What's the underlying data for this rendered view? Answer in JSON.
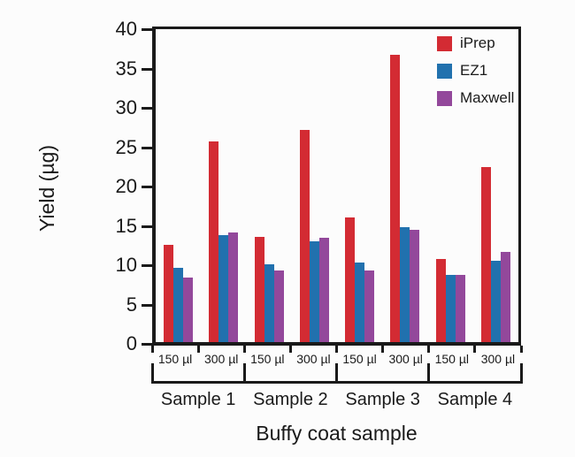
{
  "figure": {
    "background": "#fcfcfc",
    "axis_color": "#1a1a1a",
    "text_color": "#1a1a1a"
  },
  "chart_data": {
    "type": "bar",
    "title": "",
    "xlabel": "Buffy coat sample",
    "ylabel": "Yield (µg)",
    "ylim": [
      0,
      40
    ],
    "yticks": [
      0,
      5,
      10,
      15,
      20,
      25,
      30,
      35,
      40
    ],
    "grid": false,
    "legend_position": "top-right-inside",
    "categories": [
      "150 µl",
      "300 µl",
      "150 µl",
      "300 µl",
      "150 µl",
      "300 µl",
      "150 µl",
      "300 µl"
    ],
    "group_labels": [
      "Sample 1",
      "Sample 2",
      "Sample 3",
      "Sample 4"
    ],
    "series": [
      {
        "name": "iPrep",
        "color": "#d32b33",
        "values": [
          12.4,
          25.6,
          13.5,
          27.1,
          15.9,
          36.7,
          10.6,
          22.4
        ]
      },
      {
        "name": "EZ1",
        "color": "#2171ae",
        "values": [
          9.5,
          13.7,
          10.0,
          12.9,
          10.2,
          14.7,
          8.6,
          10.4
        ]
      },
      {
        "name": "Maxwell",
        "color": "#93489b",
        "values": [
          8.3,
          14.0,
          9.2,
          13.3,
          9.2,
          14.3,
          8.6,
          11.5
        ]
      }
    ]
  }
}
